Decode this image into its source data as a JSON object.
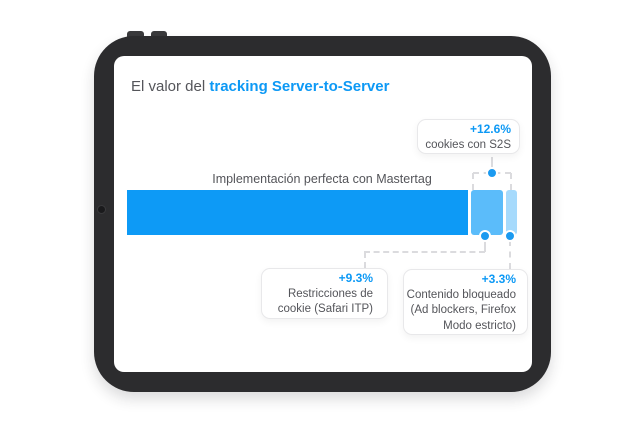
{
  "header": {
    "title_prefix": "El valor del ",
    "title_highlight": "tracking Server-to-Server"
  },
  "chart_data": {
    "type": "bar",
    "orientation": "horizontal",
    "title": "El valor del tracking Server-to-Server",
    "bar_label": "Implementación perfecta con Mastertag",
    "unit": "%",
    "segments": [
      {
        "name": "Implementación perfecta con Mastertag",
        "value": 100,
        "color": "#0D9AF6"
      },
      {
        "name": "Restricciones de cookie (Safari ITP)",
        "value": 9.3,
        "color": "#5BBCFA"
      },
      {
        "name": "Contenido bloqueado (Ad blockers, Firefox Modo estricto)",
        "value": 3.3,
        "color": "#A6DAFC"
      }
    ],
    "callouts": [
      {
        "value": "+12.6%",
        "lines": [
          "cookies con S2S"
        ]
      },
      {
        "value": "+9.3%",
        "lines": [
          "Restricciones de",
          "cookie (Safari ITP)"
        ]
      },
      {
        "value": "+3.3%",
        "lines": [
          "Contenido bloqueado",
          "(Ad blockers, Firefox",
          "Modo estricto)"
        ]
      }
    ],
    "legend": "none",
    "axes": "none"
  },
  "colors": {
    "accent_blue": "#0D99F5",
    "bar_base": "#0D9AF6",
    "bar_mid": "#5BBCFA",
    "bar_light": "#A6DAFC",
    "text_gray": "#54555A",
    "frame_dark": "#2C2C2E",
    "dashed_line": "#DBDBDE",
    "dot_blue": "#1B9AF0"
  }
}
